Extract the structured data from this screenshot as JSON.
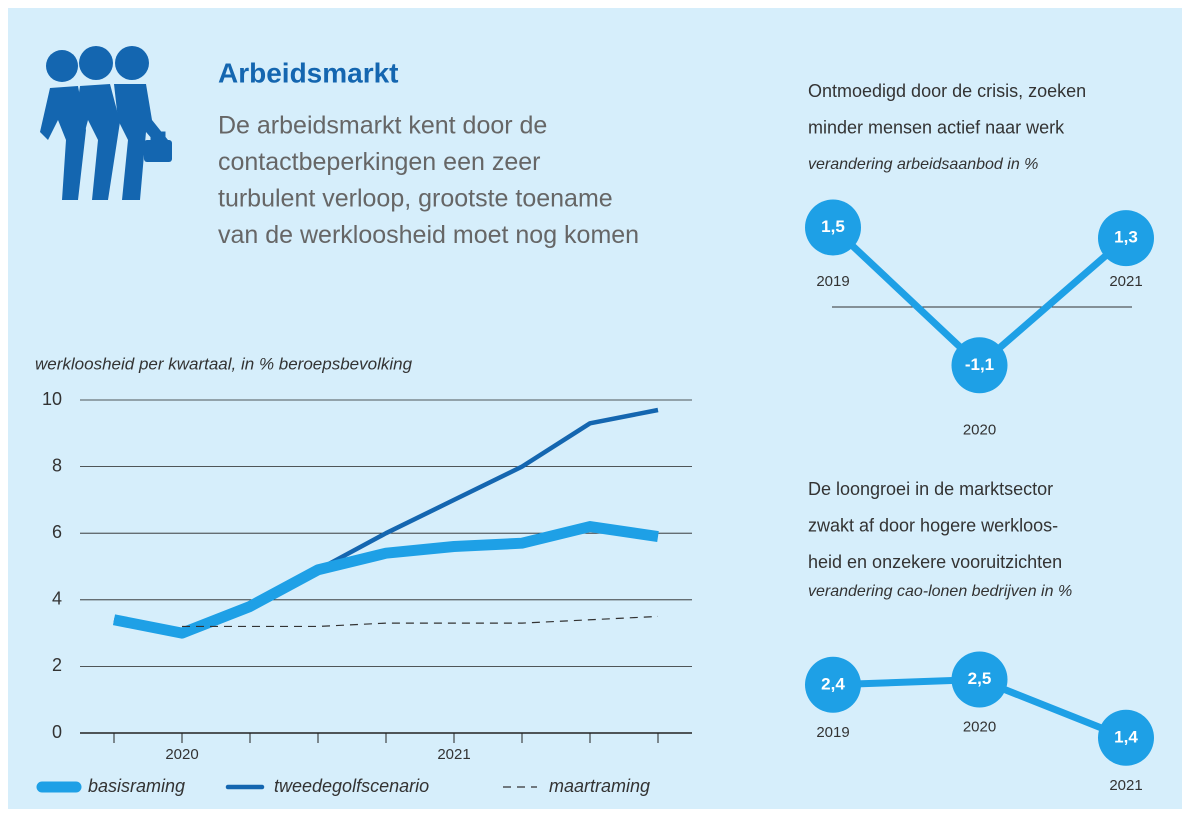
{
  "header": {
    "title": "Arbeidsmarkt",
    "subtitle": [
      "De arbeidsmarkt kent door de",
      "contactbeperkingen een zeer",
      "turbulent verloop, grootste toename",
      "van de werkloosheid moet nog komen"
    ]
  },
  "chart_data": [
    {
      "type": "line",
      "title": "werkloosheid per kwartaal, in % beroepsbevolking",
      "categories": [
        null,
        "2020",
        null,
        null,
        null,
        "2021",
        null,
        null,
        null
      ],
      "ylim": [
        0,
        10
      ],
      "yticks": [
        0,
        2,
        4,
        6,
        8,
        10
      ],
      "grid": true,
      "series": [
        {
          "name": "tweedegolfscenario",
          "color": "#1466b0",
          "style": "solid",
          "values": [
            3.4,
            3.0,
            3.8,
            4.9,
            6.0,
            7.0,
            8.0,
            9.3,
            9.7
          ]
        },
        {
          "name": "basisraming",
          "color": "#1ea0e6",
          "style": "thick",
          "values": [
            3.4,
            3.0,
            3.8,
            4.9,
            5.4,
            5.6,
            5.7,
            6.2,
            5.9
          ]
        },
        {
          "name": "maartraming",
          "color": "#333333",
          "style": "dashed",
          "values": [
            null,
            3.2,
            3.2,
            3.2,
            3.3,
            3.3,
            3.3,
            3.4,
            3.5
          ]
        }
      ],
      "legend_order": [
        1,
        0,
        2
      ]
    },
    {
      "type": "dot",
      "title": [
        "Ontmoedigd door de crisis, zoeken",
        "minder mensen actief naar werk"
      ],
      "subtitle": "verandering arbeidsaanbod in %",
      "zero_line": true,
      "color": "#1ea0e6",
      "categories": [
        "2019",
        "2020",
        "2021"
      ],
      "values": [
        1.5,
        -1.1,
        1.3
      ],
      "value_labels": [
        "1,5",
        "-1,1",
        "1,3"
      ]
    },
    {
      "type": "dot",
      "title": [
        "De loongroei in de marktsector",
        "zwakt af door hogere werkloos-",
        "heid en onzekere vooruitzichten"
      ],
      "subtitle": "verandering cao-lonen bedrijven in %",
      "zero_line": false,
      "color": "#1ea0e6",
      "categories": [
        "2019",
        "2020",
        "2021"
      ],
      "values": [
        2.4,
        2.5,
        1.4
      ],
      "value_labels": [
        "2,4",
        "2,5",
        "1,4"
      ]
    }
  ]
}
